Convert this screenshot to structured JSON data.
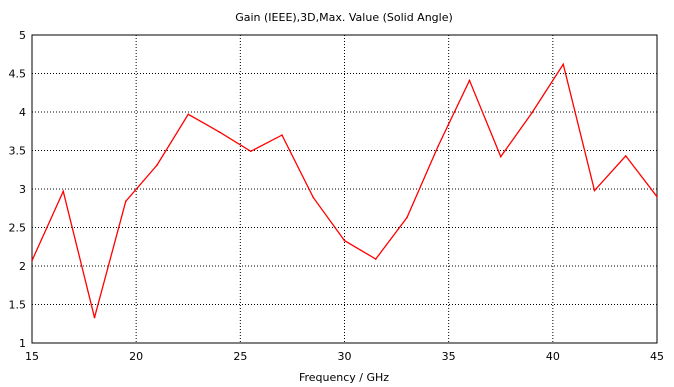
{
  "chart_data": {
    "type": "line",
    "title": "Gain (IEEE),3D,Max. Value (Solid Angle)",
    "xlabel": "Frequency / GHz",
    "ylabel": "",
    "xlim": [
      15,
      45
    ],
    "ylim": [
      1,
      5
    ],
    "x_ticks": [
      "15",
      "20",
      "25",
      "30",
      "35",
      "40",
      "45"
    ],
    "y_ticks": [
      "1",
      "1.5",
      "2",
      "2.5",
      "3",
      "3.5",
      "4",
      "4.5",
      "5"
    ],
    "grid": true,
    "series": [
      {
        "color": "#ff0000",
        "x": [
          15,
          16.5,
          18,
          19.5,
          21,
          22.5,
          24,
          25.5,
          27,
          28.5,
          30,
          31.5,
          33,
          34.5,
          36,
          37.5,
          39,
          40.5,
          42,
          43.5,
          45
        ],
        "y": [
          2.07,
          2.97,
          1.33,
          2.84,
          3.31,
          3.97,
          3.74,
          3.49,
          3.7,
          2.89,
          2.33,
          2.09,
          2.63,
          3.56,
          4.41,
          3.42,
          3.99,
          4.62,
          2.98,
          3.43,
          2.9
        ]
      }
    ]
  }
}
